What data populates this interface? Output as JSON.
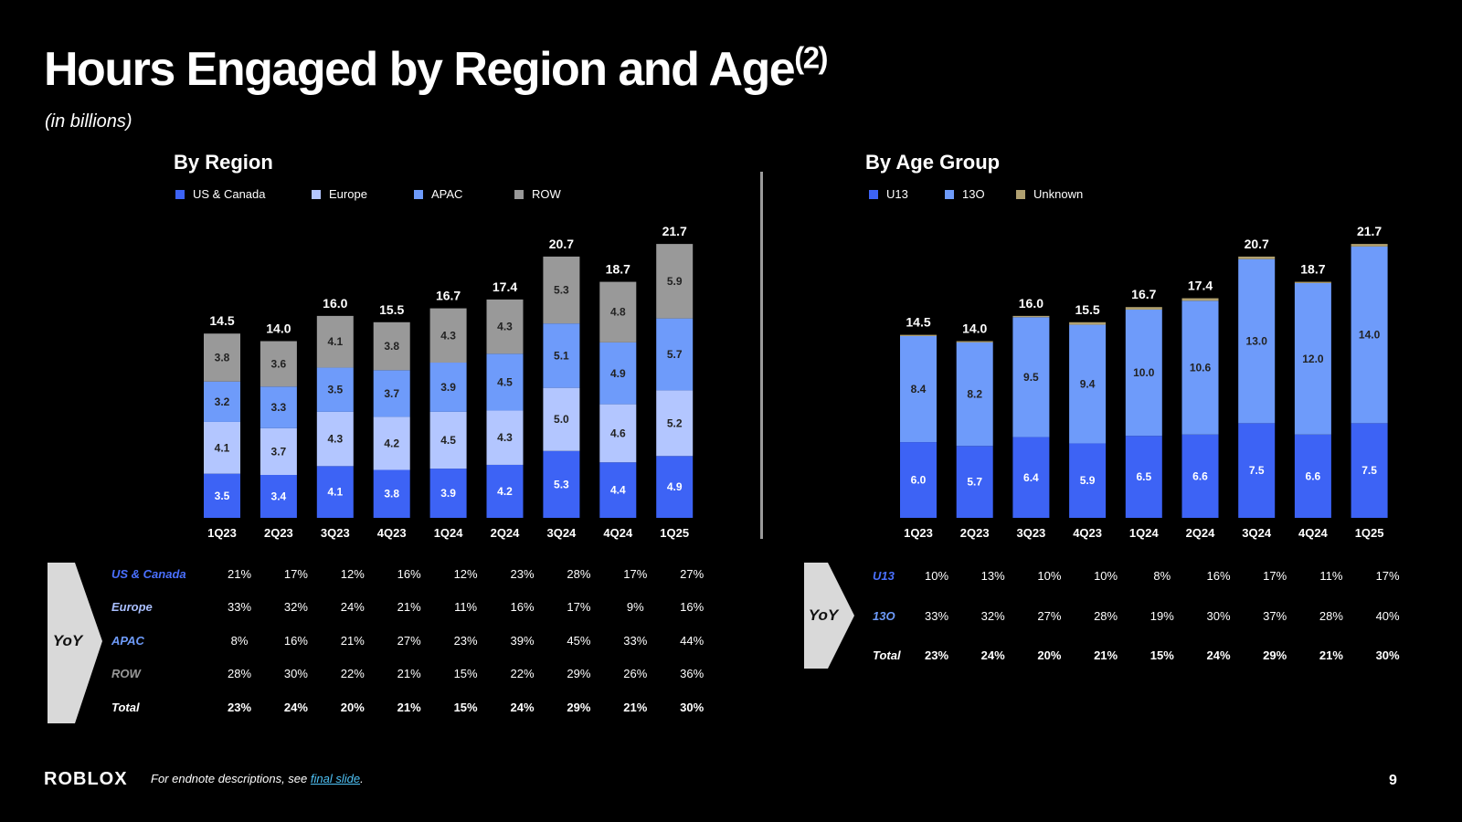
{
  "title": "Hours Engaged by Region and Age",
  "title_sup": "(2)",
  "subtitle": "(in billions)",
  "colors": {
    "background": "#000000",
    "us_canada": "#3d63f5",
    "europe": "#b3c6ff",
    "apac": "#6e9bfa",
    "row": "#999999",
    "u13": "#3d63f5",
    "13o": "#6e9bfa",
    "unknown": "#b0a070",
    "link": "#4fc3f7"
  },
  "chart_data": [
    {
      "type": "bar",
      "stacked": true,
      "title": "By Region",
      "categories": [
        "1Q23",
        "2Q23",
        "3Q23",
        "4Q23",
        "1Q24",
        "2Q24",
        "3Q24",
        "4Q24",
        "1Q25"
      ],
      "series": [
        {
          "name": "US & Canada",
          "values": [
            3.5,
            3.4,
            4.1,
            3.8,
            3.9,
            4.2,
            5.3,
            4.4,
            4.9
          ]
        },
        {
          "name": "Europe",
          "values": [
            4.1,
            3.7,
            4.3,
            4.2,
            4.5,
            4.3,
            5.0,
            4.6,
            5.2
          ]
        },
        {
          "name": "APAC",
          "values": [
            3.2,
            3.3,
            3.5,
            3.7,
            3.9,
            4.5,
            5.1,
            4.9,
            5.7
          ]
        },
        {
          "name": "ROW",
          "values": [
            3.8,
            3.6,
            4.1,
            3.8,
            4.3,
            4.3,
            5.3,
            4.8,
            5.9
          ]
        }
      ],
      "totals": [
        "14.5",
        "14.0",
        "16.0",
        "15.5",
        "16.7",
        "17.4",
        "20.7",
        "18.7",
        "21.7"
      ],
      "ylim": [
        0,
        22
      ],
      "legend": "top",
      "yoy": {
        "label": "YoY",
        "rows": [
          {
            "name": "US & Canada",
            "values": [
              "21%",
              "17%",
              "12%",
              "16%",
              "12%",
              "23%",
              "28%",
              "17%",
              "27%"
            ]
          },
          {
            "name": "Europe",
            "values": [
              "33%",
              "32%",
              "24%",
              "21%",
              "11%",
              "16%",
              "17%",
              "9%",
              "16%"
            ]
          },
          {
            "name": "APAC",
            "values": [
              "8%",
              "16%",
              "21%",
              "27%",
              "23%",
              "39%",
              "45%",
              "33%",
              "44%"
            ]
          },
          {
            "name": "ROW",
            "values": [
              "28%",
              "30%",
              "22%",
              "21%",
              "15%",
              "22%",
              "29%",
              "26%",
              "36%"
            ]
          },
          {
            "name": "Total",
            "values": [
              "23%",
              "24%",
              "20%",
              "21%",
              "15%",
              "24%",
              "29%",
              "21%",
              "30%"
            ]
          }
        ]
      }
    },
    {
      "type": "bar",
      "stacked": true,
      "title": "By Age Group",
      "categories": [
        "1Q23",
        "2Q23",
        "3Q23",
        "4Q23",
        "1Q24",
        "2Q24",
        "3Q24",
        "4Q24",
        "1Q25"
      ],
      "series": [
        {
          "name": "U13",
          "values": [
            6.0,
            5.7,
            6.4,
            5.9,
            6.5,
            6.6,
            7.5,
            6.6,
            7.5
          ]
        },
        {
          "name": "13O",
          "values": [
            8.4,
            8.2,
            9.5,
            9.4,
            10.0,
            10.6,
            13.0,
            12.0,
            14.0
          ]
        },
        {
          "name": "Unknown",
          "values": [
            0.1,
            0.1,
            0.1,
            0.2,
            0.2,
            0.2,
            0.2,
            0.1,
            0.2
          ]
        }
      ],
      "totals": [
        "14.5",
        "14.0",
        "16.0",
        "15.5",
        "16.7",
        "17.4",
        "20.7",
        "18.7",
        "21.7"
      ],
      "ylim": [
        0,
        22
      ],
      "legend": "top",
      "yoy": {
        "label": "YoY",
        "rows": [
          {
            "name": "U13",
            "values": [
              "10%",
              "13%",
              "10%",
              "10%",
              "8%",
              "16%",
              "17%",
              "11%",
              "17%"
            ]
          },
          {
            "name": "13O",
            "values": [
              "33%",
              "32%",
              "27%",
              "28%",
              "19%",
              "30%",
              "37%",
              "28%",
              "40%"
            ]
          },
          {
            "name": "Total",
            "values": [
              "23%",
              "24%",
              "20%",
              "21%",
              "15%",
              "24%",
              "29%",
              "21%",
              "30%"
            ]
          }
        ]
      }
    }
  ],
  "footer": {
    "logo": "ROBLOX",
    "note": "For endnote descriptions, see ",
    "link": "final slide",
    "note_end": ".",
    "page": "9"
  }
}
